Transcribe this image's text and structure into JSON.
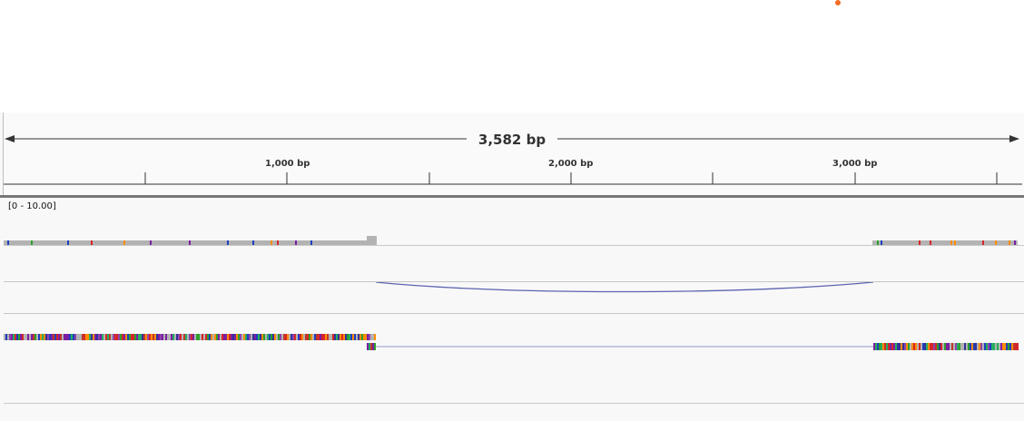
{
  "ruler": {
    "span_label": "3,582 bp",
    "tick_labels": [
      "1,000 bp",
      "2,000 bp",
      "3,000 bp"
    ]
  },
  "coverage_track": {
    "range_label": "[0 - 10.00]"
  },
  "colors": {
    "orange_dot": "#f26b21",
    "coverage_gray": "#b3b3b3",
    "junction_arc": "#5b63b0",
    "split_line": "#8f96c8",
    "separator": "#777777"
  }
}
